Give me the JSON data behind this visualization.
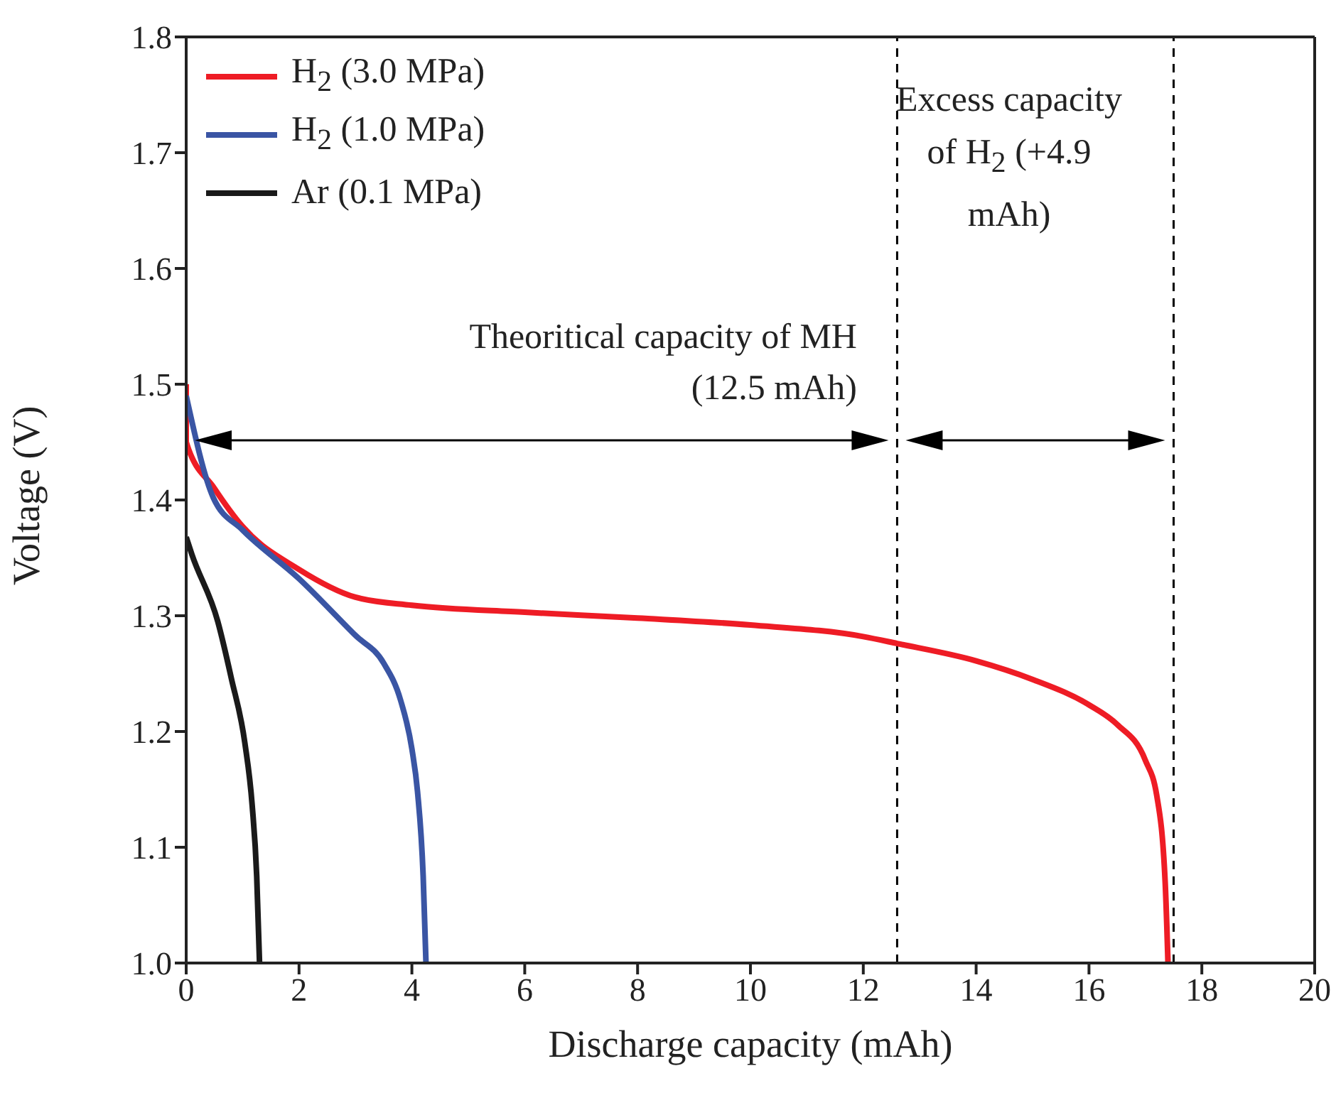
{
  "chart_data": {
    "type": "line",
    "xlabel": "Discharge capacity (mAh)",
    "ylabel": "Voltage (V)",
    "xlim": [
      0,
      20
    ],
    "xticks": [
      0,
      2,
      4,
      6,
      8,
      10,
      12,
      14,
      16,
      18,
      20
    ],
    "ylim": [
      1.0,
      1.8
    ],
    "yticks": [
      {
        "value": 1.0,
        "label": "1.0"
      },
      {
        "value": 1.1,
        "label": "1.1"
      },
      {
        "value": 1.2,
        "label": "1.2"
      },
      {
        "value": 1.3,
        "label": "1.3"
      },
      {
        "value": 1.4,
        "label": "1.4"
      },
      {
        "value": 1.5,
        "label": "1.5"
      },
      {
        "value": 1.6,
        "label": "1.6"
      },
      {
        "value": 1.7,
        "label": "1.7"
      },
      {
        "value": 1.8,
        "label": "1.8"
      }
    ],
    "legend": "top left",
    "marker": "none",
    "line_style": "solid",
    "series": [
      {
        "name": "H$_{2}$ (3.0 MPa)",
        "color": "#ee1c25",
        "x": [
          0,
          0,
          0.5,
          1,
          2,
          3,
          4,
          6,
          8,
          10,
          12,
          12.6,
          14,
          15,
          16,
          16.5,
          17,
          17.2,
          17.35,
          17.4
        ],
        "values": [
          1.5,
          1.45,
          1.41,
          1.377,
          1.34,
          1.316,
          1.309,
          1.303,
          1.298,
          1.292,
          1.282,
          1.276,
          1.261,
          1.245,
          1.223,
          1.206,
          1.175,
          1.145,
          1.07,
          1.0
        ]
      },
      {
        "name": "H$_{2}$ (1.0 MPa)",
        "color": "#3a55a4",
        "x": [
          0,
          0.48,
          1,
          2,
          3,
          3.5,
          3.8,
          4.0,
          4.1,
          4.2,
          4.25
        ],
        "values": [
          1.49,
          1.402,
          1.374,
          1.332,
          1.283,
          1.259,
          1.227,
          1.185,
          1.148,
          1.075,
          1.0
        ]
      },
      {
        "name": "Ar (0.1 MPa)",
        "color": "#1a1a1a",
        "x": [
          0,
          0.1,
          0.56,
          0.8,
          1.04,
          1.17,
          1.25,
          1.3
        ],
        "values": [
          1.368,
          1.353,
          1.295,
          1.246,
          1.19,
          1.136,
          1.075,
          1.0
        ]
      }
    ],
    "ref_lines": [
      {
        "axis": "x",
        "value": 12.6,
        "color": "#000000",
        "line_style": "dashed"
      },
      {
        "axis": "x",
        "value": 17.5,
        "color": "#000000",
        "line_style": "dashed"
      }
    ],
    "annotations": [
      "Theoritical capacity of MH (12.5 mAh)",
      "Excess capacity of H$_{2}$ (+4.9 mAh)"
    ]
  }
}
